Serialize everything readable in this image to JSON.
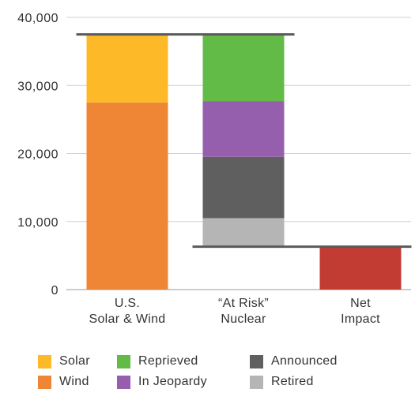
{
  "chart_data": {
    "type": "bar",
    "stacked": true,
    "chart_style": "waterfall",
    "categories": [
      "U.S.\nSolar & Wind",
      "“At Risk”\nNuclear",
      "Net\nImpact"
    ],
    "ylim": [
      0,
      40000
    ],
    "yticks": [
      0,
      10000,
      20000,
      30000,
      40000
    ],
    "ytick_labels": [
      "0",
      "10,000",
      "20,000",
      "30,000",
      "40,000"
    ],
    "grid": true,
    "legend_position": "bottom",
    "series": [
      {
        "name": "Wind",
        "color": "#EF8636",
        "category": 0,
        "bottom": 0,
        "value": 27500
      },
      {
        "name": "Solar",
        "color": "#FDB927",
        "category": 0,
        "bottom": 27500,
        "value": 10000
      },
      {
        "name": "Retired",
        "color": "#B5B5B5",
        "category": 1,
        "bottom": 6300,
        "value": 4200
      },
      {
        "name": "Announced",
        "color": "#5F5F5F",
        "category": 1,
        "bottom": 10500,
        "value": 9000
      },
      {
        "name": "In Jeopardy",
        "color": "#965FAE",
        "category": 1,
        "bottom": 19500,
        "value": 8200
      },
      {
        "name": "Reprieved",
        "color": "#63BB47",
        "category": 1,
        "bottom": 27700,
        "value": 9800
      },
      {
        "name": "Net Impact",
        "color": "#C33C33",
        "category": 2,
        "bottom": 0,
        "value": 6300
      }
    ],
    "reference_lines": [
      {
        "y": 37500,
        "from_category": 0,
        "to_category": 1
      },
      {
        "y": 6300,
        "from_category": 1,
        "to_category": 2
      }
    ],
    "legend": [
      {
        "label": "Solar",
        "color": "#FDB927"
      },
      {
        "label": "Reprieved",
        "color": "#63BB47"
      },
      {
        "label": "Announced",
        "color": "#5F5F5F"
      },
      {
        "label": "Wind",
        "color": "#EF8636"
      },
      {
        "label": "In Jeopardy",
        "color": "#965FAE"
      },
      {
        "label": "Retired",
        "color": "#B5B5B5"
      }
    ]
  }
}
